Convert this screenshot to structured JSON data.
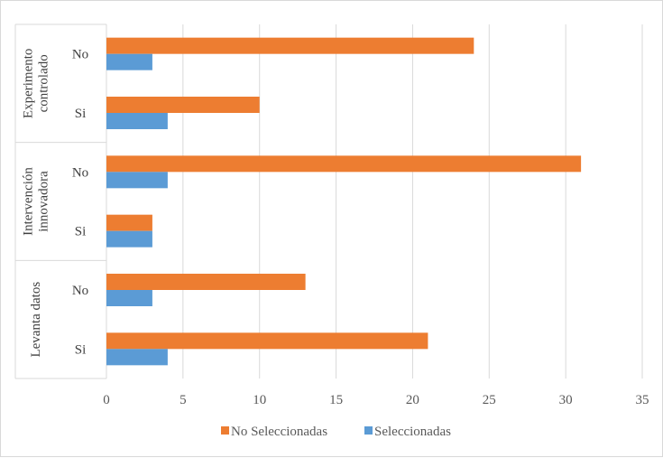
{
  "chart_data": {
    "type": "bar",
    "orientation": "horizontal",
    "groups": [
      {
        "label": "Experimento controlado",
        "lines": [
          "Experimento",
          "controlado"
        ]
      },
      {
        "label": "Intervención innovadora",
        "lines": [
          "Intervención",
          "innovadora"
        ]
      },
      {
        "label": "Levanta datos",
        "lines": [
          "Levanta datos"
        ]
      }
    ],
    "categories": [
      {
        "group": 0,
        "label": "No"
      },
      {
        "group": 0,
        "label": "Si"
      },
      {
        "group": 1,
        "label": "No"
      },
      {
        "group": 1,
        "label": "Si"
      },
      {
        "group": 2,
        "label": "No"
      },
      {
        "group": 2,
        "label": "Si"
      }
    ],
    "series": [
      {
        "name": "No Seleccionadas",
        "color": "#ED7D31",
        "values": [
          24,
          10,
          31,
          3,
          13,
          21
        ]
      },
      {
        "name": "Seleccionadas",
        "color": "#5B9BD5",
        "values": [
          3,
          4,
          4,
          3,
          3,
          4
        ]
      }
    ],
    "xlim": [
      0,
      35
    ],
    "xticks": [
      0,
      5,
      10,
      15,
      20,
      25,
      30,
      35
    ],
    "grid": "vertical",
    "legend": "bottom"
  }
}
